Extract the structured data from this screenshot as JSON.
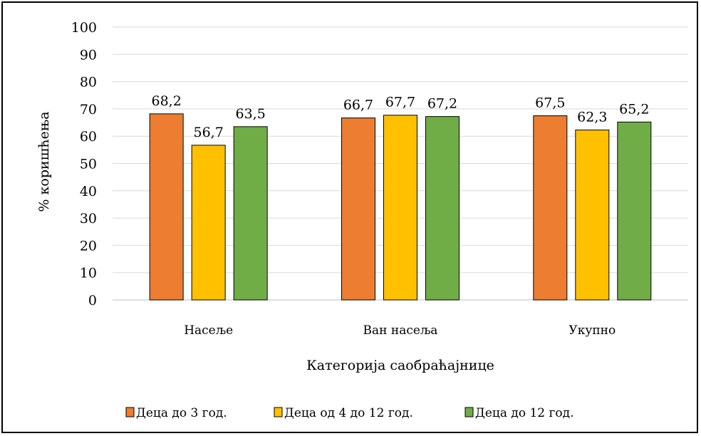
{
  "chart_data": {
    "type": "bar",
    "title": "",
    "xlabel": "Категорија саобраћајнице",
    "ylabel": "% коришћења",
    "ylim": [
      0,
      100
    ],
    "yticks": [
      0,
      10,
      20,
      30,
      40,
      50,
      60,
      70,
      80,
      90,
      100
    ],
    "grid": true,
    "legend_position": "bottom",
    "categories": [
      "Насеље",
      "Ван насеља",
      "Укупно"
    ],
    "series": [
      {
        "name": "Деца до 3 год.",
        "color": "#ED7D31",
        "values": [
          68.2,
          66.7,
          67.5
        ],
        "labels": [
          "68,2",
          "66,7",
          "67,5"
        ]
      },
      {
        "name": "Деца од 4 до 12 год.",
        "color": "#FFC000",
        "values": [
          56.7,
          67.7,
          62.3
        ],
        "labels": [
          "56,7",
          "67,7",
          "62,3"
        ]
      },
      {
        "name": "Деца до 12 год.",
        "color": "#70AD47",
        "values": [
          63.5,
          67.2,
          65.2
        ],
        "labels": [
          "63,5",
          "67,2",
          "65,2"
        ]
      }
    ]
  }
}
